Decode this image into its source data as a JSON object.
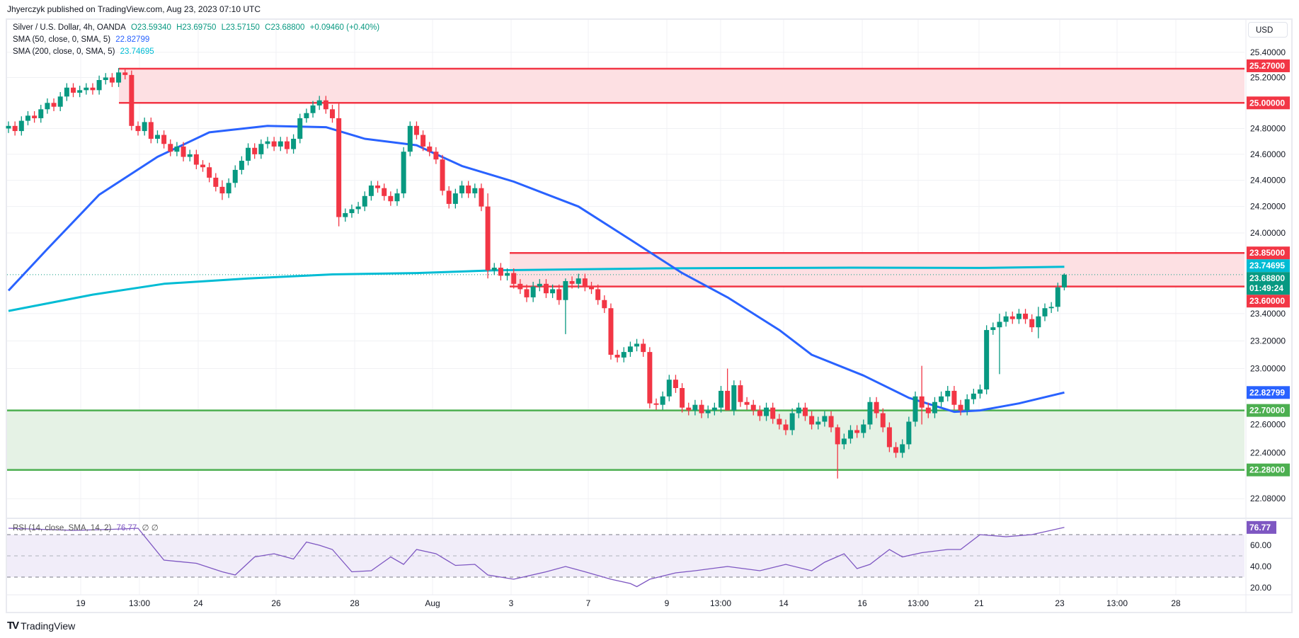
{
  "publisher_line": "Jhyerczyk published on TradingView.com, Aug 23, 2023 07:10 UTC",
  "legend": {
    "symbol": "Silver / U.S. Dollar, 4h, OANDA",
    "open": "O23.59340",
    "high": "H23.69750",
    "low": "L23.57150",
    "close": "C23.68800",
    "change": "+0.09460 (+0.40%)",
    "sma50_label": "SMA (50, close, 0, SMA, 5)",
    "sma50_value": "22.82799",
    "sma200_label": "SMA (200, close, 0, SMA, 5)",
    "sma200_value": "23.74695",
    "rsi_label": "RSI (14, close, SMA, 14, 2)",
    "rsi_value": "76.77",
    "rsi_extra": "∅ ∅"
  },
  "currency_button": "USD",
  "logo_text": "TradingView",
  "colors": {
    "up": "#089981",
    "down": "#f23645",
    "sma50": "#2962ff",
    "sma200": "#00bcd4",
    "rsi": "#7e57c2",
    "resistance": "#f23645",
    "support": "#4caf50"
  },
  "chart_data": {
    "type": "candlestick",
    "symbol": "XAGUSD",
    "timeframe": "4h",
    "price_scale": "log",
    "first_open": 24.8,
    "closes": [
      24.82,
      24.78,
      24.86,
      24.9,
      24.88,
      24.95,
      25.0,
      24.97,
      25.05,
      25.12,
      25.08,
      25.1,
      25.12,
      25.1,
      25.18,
      25.2,
      25.16,
      25.24,
      25.22,
      24.82,
      24.78,
      24.85,
      24.72,
      24.75,
      24.68,
      24.62,
      24.66,
      24.58,
      24.6,
      24.52,
      24.5,
      24.42,
      24.35,
      24.3,
      24.38,
      24.48,
      24.55,
      24.65,
      24.6,
      24.68,
      24.7,
      24.66,
      24.7,
      24.64,
      24.72,
      24.88,
      24.92,
      24.98,
      25.02,
      24.95,
      24.88,
      24.12,
      24.15,
      24.18,
      24.2,
      24.28,
      24.36,
      24.34,
      24.28,
      24.24,
      24.3,
      24.62,
      24.82,
      24.75,
      24.66,
      24.62,
      24.56,
      24.32,
      24.22,
      24.3,
      24.36,
      24.3,
      24.34,
      24.2,
      23.72,
      23.74,
      23.68,
      23.7,
      23.62,
      23.58,
      23.52,
      23.6,
      23.62,
      23.55,
      23.58,
      23.5,
      23.64,
      23.62,
      23.66,
      23.6,
      23.58,
      23.5,
      23.44,
      23.1,
      23.08,
      23.12,
      23.16,
      23.18,
      23.12,
      22.75,
      22.74,
      22.8,
      22.92,
      22.86,
      22.72,
      22.7,
      22.74,
      22.68,
      22.7,
      22.72,
      22.84,
      22.7,
      22.88,
      22.76,
      22.74,
      22.7,
      22.66,
      22.72,
      22.64,
      22.6,
      22.56,
      22.68,
      22.72,
      22.66,
      22.6,
      22.62,
      22.66,
      22.58,
      22.46,
      22.5,
      22.56,
      22.54,
      22.6,
      22.76,
      22.68,
      22.58,
      22.44,
      22.4,
      22.46,
      22.62,
      22.8,
      22.72,
      22.68,
      22.76,
      22.8,
      22.84,
      22.74,
      22.7,
      22.78,
      22.82,
      22.85,
      23.28,
      23.3,
      23.34,
      23.38,
      23.36,
      23.4,
      23.36,
      23.3,
      23.38,
      23.44,
      23.45,
      23.5934,
      23.688
    ],
    "extreme_wicks": {
      "33": [
        24.4,
        24.25
      ],
      "51": [
        25.0,
        24.05
      ],
      "74": [
        24.3,
        23.66
      ],
      "86": [
        23.66,
        23.25
      ],
      "111": [
        23.0,
        22.7
      ],
      "128": [
        22.6,
        22.22
      ],
      "141": [
        23.02,
        22.6
      ],
      "153": [
        23.4,
        22.96
      ],
      "159": [
        23.45,
        23.22
      ]
    },
    "last_bar": {
      "open": 23.5934,
      "high": 23.6975,
      "low": 23.5715,
      "close": 23.688
    },
    "sma50": {
      "idx": [
        0,
        6,
        14,
        23,
        31,
        40,
        49,
        55,
        63,
        70,
        78,
        88,
        96,
        104,
        111,
        119,
        124,
        132,
        139,
        146,
        150,
        156,
        163
      ],
      "val": [
        23.57,
        23.88,
        24.29,
        24.58,
        24.77,
        24.82,
        24.81,
        24.72,
        24.67,
        24.51,
        24.39,
        24.2,
        23.95,
        23.7,
        23.52,
        23.28,
        23.1,
        22.95,
        22.79,
        22.69,
        22.7,
        22.75,
        22.828
      ]
    },
    "sma200": {
      "idx": [
        0,
        13,
        24,
        37,
        50,
        63,
        75,
        100,
        130,
        150,
        163
      ],
      "val": [
        23.42,
        23.54,
        23.62,
        23.66,
        23.69,
        23.7,
        23.72,
        23.735,
        23.74,
        23.738,
        23.747
      ]
    },
    "rsi": {
      "idx": [
        0,
        10,
        16,
        20,
        24,
        29,
        33,
        35,
        38,
        41,
        44,
        46,
        48,
        50,
        53,
        56,
        59,
        61,
        63,
        66,
        69,
        72,
        74,
        78,
        83,
        86,
        89,
        93,
        96,
        97,
        99,
        103,
        106,
        111,
        116,
        120,
        124,
        126,
        129,
        131,
        133,
        136,
        138,
        141,
        145,
        147,
        150,
        154,
        158,
        163
      ],
      "val": [
        76,
        74,
        75,
        76,
        46,
        43,
        35,
        32,
        49,
        52,
        47,
        63,
        60,
        56,
        35,
        36,
        49,
        42,
        56,
        52,
        41,
        42,
        32,
        28,
        35,
        40,
        35,
        28,
        24,
        21,
        28,
        34,
        36,
        40,
        36,
        42,
        36,
        44,
        52,
        38,
        42,
        56,
        49,
        53,
        56,
        56,
        70,
        68,
        70,
        76.77
      ],
      "levels": [
        70,
        50,
        30
      ],
      "ylim": [
        10,
        85
      ]
    },
    "horizontal_zones": [
      {
        "type": "resistance",
        "top": 25.27,
        "bottom": 25.0,
        "top_label": "25.27000",
        "bottom_label": "25.00000"
      },
      {
        "type": "resistance",
        "top": 23.85,
        "bottom": 23.6,
        "top_label": "23.85000",
        "bottom_label": "23.60000"
      },
      {
        "type": "support",
        "top": 22.7,
        "bottom": 22.28,
        "top_label": "22.70000",
        "bottom_label": "22.28000"
      }
    ],
    "price_ticks": [
      "25.40000",
      "25.20000",
      "24.80000",
      "24.60000",
      "24.40000",
      "24.20000",
      "24.00000",
      "23.40000",
      "23.20000",
      "23.00000",
      "22.60000",
      "22.40000",
      "22.08000"
    ],
    "rsi_ticks": [
      "60.00",
      "40.00",
      "20.00"
    ],
    "time_ticks": [
      "19",
      "13:00",
      "24",
      "26",
      "28",
      "Aug",
      "3",
      "7",
      "9",
      "13:00",
      "14",
      "16",
      "13:00",
      "21",
      "23",
      "13:00",
      "28"
    ],
    "price_badges": {
      "sma200": "23.74695",
      "last": "23.68800",
      "countdown": "01:49:24",
      "sma50": "22.82799",
      "rsi": "76.77"
    }
  }
}
